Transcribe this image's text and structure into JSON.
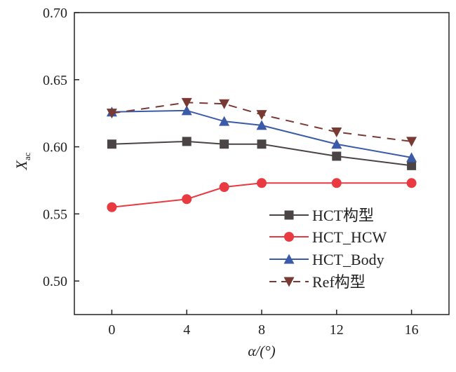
{
  "chart_data": {
    "type": "line",
    "title": "",
    "xlabel": "α/(°)",
    "ylabel_main": "X",
    "ylabel_sub": "ac",
    "xlim": [
      -2,
      18
    ],
    "ylim": [
      0.475,
      0.7
    ],
    "xticks": [
      0,
      4,
      8,
      12,
      16
    ],
    "xtick_labels": [
      "0",
      "4",
      "8",
      "12",
      "16"
    ],
    "yticks": [
      0.5,
      0.55,
      0.6,
      0.65,
      0.7
    ],
    "ytick_labels": [
      "0.50",
      "0.55",
      "0.60",
      "0.65",
      "0.70"
    ],
    "grid": false,
    "legend_position": "lower-right",
    "x": [
      0,
      4,
      6,
      8,
      12,
      16
    ],
    "series": [
      {
        "name": "HCT构型",
        "color": "#4a4444",
        "marker": "square",
        "dashed": false,
        "values": [
          0.602,
          0.604,
          0.602,
          0.602,
          0.593,
          0.586
        ]
      },
      {
        "name": "HCT_HCW",
        "color": "#e83a40",
        "marker": "circle",
        "dashed": false,
        "values": [
          0.555,
          0.561,
          0.57,
          0.573,
          0.573,
          0.573
        ]
      },
      {
        "name": "HCT_Body",
        "color": "#3b5ba8",
        "marker": "triangle-up",
        "dashed": false,
        "values": [
          0.626,
          0.627,
          0.619,
          0.616,
          0.602,
          0.592
        ]
      },
      {
        "name": "Ref构型",
        "color": "#7a3a34",
        "marker": "triangle-down",
        "dashed": true,
        "values": [
          0.625,
          0.633,
          0.632,
          0.624,
          0.611,
          0.604
        ]
      }
    ]
  }
}
